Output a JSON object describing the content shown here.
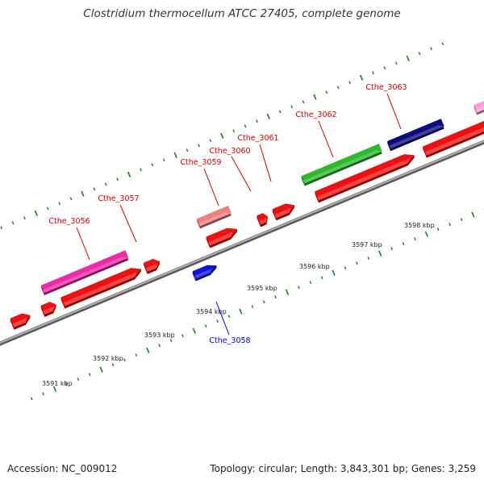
{
  "title": "Clostridium thermocellum ATCC 27405, complete genome",
  "footer": {
    "accession": "Accession: NC_009012",
    "summary": "Topology: circular; Length: 3,843,301 bp; Genes: 3,259"
  },
  "colors": {
    "backbone": "#8a8a8a",
    "tick": "#1e7a1e",
    "label_plus": "#cc0000",
    "label_minus": "#0000cc"
  },
  "scale_labels": [
    "3591 kbp",
    "3592 kbp",
    "3593 kbp",
    "3594 kbp",
    "3595 kbp",
    "3596 kbp",
    "3597 kbp",
    "3598 kbp"
  ],
  "gene_labels": [
    {
      "name": "Cthe_3056",
      "strand": "plus"
    },
    {
      "name": "Cthe_3057",
      "strand": "plus"
    },
    {
      "name": "Cthe_3058",
      "strand": "minus"
    },
    {
      "name": "Cthe_3059",
      "strand": "plus"
    },
    {
      "name": "Cthe_3060",
      "strand": "plus"
    },
    {
      "name": "Cthe_3061",
      "strand": "plus"
    },
    {
      "name": "Cthe_3062",
      "strand": "plus"
    },
    {
      "name": "Cthe_3063",
      "strand": "plus"
    }
  ]
}
